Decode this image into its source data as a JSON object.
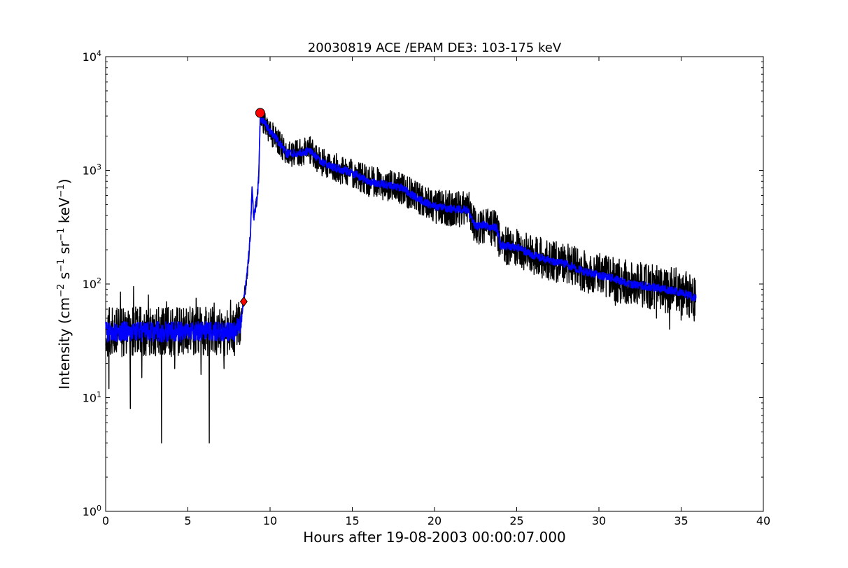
{
  "chart_data": {
    "type": "line",
    "title": "20030819 ACE /EPAM DE3: 103-175 keV",
    "xlabel": "Hours after 19-08-2003 00:00:07.000",
    "ylabel": {
      "base": "Intensity (cm",
      "exp1": "−2",
      "s": " s",
      "exp2": "−1",
      "sr": " sr",
      "exp3": "−1",
      "kev": " keV",
      "exp4": "−1",
      "close": ")"
    },
    "xlim": [
      0,
      40
    ],
    "ylim": [
      1,
      10000
    ],
    "yscale": "log",
    "grid": false,
    "x_ticks": [
      "0",
      "5",
      "10",
      "15",
      "20",
      "25",
      "30",
      "35",
      "40"
    ],
    "x_tick_values": [
      0,
      5,
      10,
      15,
      20,
      25,
      30,
      35,
      40
    ],
    "y_ticks": [
      {
        "base": "10",
        "exp": "0"
      },
      {
        "base": "10",
        "exp": "1"
      },
      {
        "base": "10",
        "exp": "2"
      },
      {
        "base": "10",
        "exp": "3"
      },
      {
        "base": "10",
        "exp": "4"
      }
    ],
    "y_tick_values": [
      1,
      10,
      100,
      1000,
      10000
    ],
    "colors": {
      "raw": "#000000",
      "smoothed": "#0000ff",
      "marker": "#ff0000"
    },
    "trend_points": [
      [
        0.0,
        38
      ],
      [
        1.0,
        38
      ],
      [
        2.0,
        38
      ],
      [
        3.0,
        38
      ],
      [
        4.0,
        38
      ],
      [
        5.0,
        38
      ],
      [
        6.0,
        38
      ],
      [
        7.0,
        38
      ],
      [
        7.8,
        38
      ],
      [
        8.2,
        44
      ],
      [
        8.35,
        62
      ],
      [
        8.6,
        120
      ],
      [
        8.8,
        260
      ],
      [
        8.9,
        700
      ],
      [
        9.0,
        380
      ],
      [
        9.2,
        560
      ],
      [
        9.3,
        800
      ],
      [
        9.4,
        2900
      ],
      [
        9.7,
        2600
      ],
      [
        10.0,
        2200
      ],
      [
        10.5,
        1800
      ],
      [
        11.0,
        1400
      ],
      [
        12.0,
        1450
      ],
      [
        12.5,
        1500
      ],
      [
        13.0,
        1200
      ],
      [
        14.0,
        1050
      ],
      [
        15.0,
        950
      ],
      [
        16.0,
        800
      ],
      [
        17.0,
        750
      ],
      [
        18.0,
        700
      ],
      [
        19.0,
        560
      ],
      [
        20.0,
        480
      ],
      [
        21.0,
        460
      ],
      [
        22.0,
        450
      ],
      [
        22.5,
        320
      ],
      [
        23.0,
        330
      ],
      [
        23.8,
        310
      ],
      [
        24.0,
        220
      ],
      [
        25.0,
        210
      ],
      [
        26.0,
        180
      ],
      [
        27.0,
        160
      ],
      [
        28.0,
        150
      ],
      [
        29.0,
        130
      ],
      [
        30.0,
        120
      ],
      [
        31.0,
        110
      ],
      [
        32.0,
        100
      ],
      [
        33.0,
        95
      ],
      [
        34.0,
        90
      ],
      [
        35.0,
        85
      ],
      [
        35.9,
        75
      ]
    ],
    "spikes": [
      [
        0.2,
        12
      ],
      [
        0.9,
        85
      ],
      [
        1.5,
        8
      ],
      [
        1.7,
        95
      ],
      [
        2.2,
        15
      ],
      [
        2.6,
        80
      ],
      [
        3.4,
        4
      ],
      [
        3.7,
        70
      ],
      [
        4.2,
        18
      ],
      [
        5.5,
        75
      ],
      [
        5.8,
        16
      ],
      [
        6.3,
        4
      ],
      [
        6.6,
        68
      ],
      [
        7.2,
        18
      ],
      [
        7.6,
        72
      ],
      [
        12.6,
        1700
      ],
      [
        16.7,
        870
      ],
      [
        21.0,
        620
      ],
      [
        22.1,
        640
      ],
      [
        23.4,
        430
      ],
      [
        27.0,
        230
      ],
      [
        30.5,
        165
      ],
      [
        31.0,
        65
      ],
      [
        33.0,
        130
      ],
      [
        33.5,
        50
      ],
      [
        34.3,
        40
      ],
      [
        35.0,
        48
      ]
    ],
    "markers": [
      {
        "name": "onset",
        "shape": "diamond",
        "x": 8.4,
        "y": 70
      },
      {
        "name": "peak",
        "shape": "circle",
        "x": 9.4,
        "y": 3200
      }
    ]
  }
}
